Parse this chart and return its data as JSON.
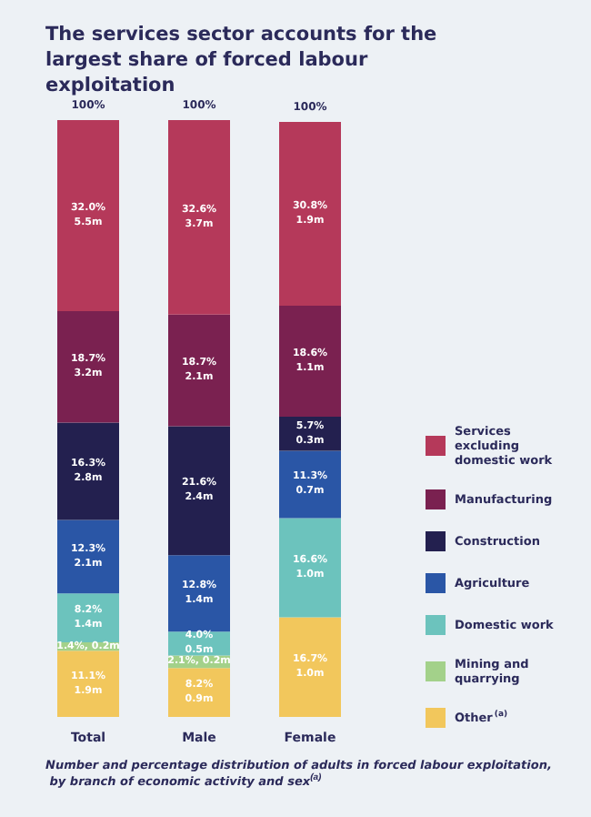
{
  "chart_data": {
    "type": "bar",
    "title": "The services sector accounts for the largest share of forced labour exploitation",
    "categories": [
      "Total",
      "Male",
      "Female"
    ],
    "stacked": true,
    "legend": "right",
    "series": [
      {
        "name": "Other$^{(a)}$",
        "color": "#f2c75c",
        "values": [
          11.1,
          8.2,
          16.7
        ],
        "value_labels": [
          "11.1%\n1.9m",
          "8.2%\n0.9m",
          "16.7%\n1.0m"
        ]
      },
      {
        "name": "Mining and quarrying",
        "color": "#a3d18a",
        "values": [
          1.4,
          2.1,
          null
        ],
        "value_labels": [
          "1.4%, 0.2m",
          "2.1%, 0.2m",
          null
        ]
      },
      {
        "name": "Domestic work",
        "color": "#6cc3bd",
        "values": [
          8.2,
          4.0,
          16.6
        ],
        "value_labels": [
          "8.2%\n1.4m",
          "4.0%\n0.5m",
          "16.6%\n1.0m"
        ]
      },
      {
        "name": "Agriculture",
        "color": "#2a56a6",
        "values": [
          12.3,
          12.8,
          11.3
        ],
        "value_labels": [
          "12.3%\n2.1m",
          "12.8%\n1.4m",
          "11.3%\n0.7m"
        ]
      },
      {
        "name": "Construction",
        "color": "#23204f",
        "values": [
          16.3,
          21.6,
          5.7
        ],
        "value_labels": [
          "16.3%\n2.8m",
          "21.6%\n2.4m",
          "5.7%\n0.3m"
        ]
      },
      {
        "name": "Manufacturing",
        "color": "#7a2150",
        "values": [
          18.7,
          18.7,
          18.6
        ],
        "value_labels": [
          "18.7%\n3.2m",
          "18.7%\n2.1m",
          "18.6%\n1.1m"
        ]
      },
      {
        "name": "Services excluding domestic work",
        "color": "#b5395a",
        "values": [
          32.0,
          32.6,
          30.8
        ],
        "value_labels": [
          "32.0%\n5.5m",
          "32.6%\n3.7m",
          "30.8%\n1.9m"
        ]
      }
    ],
    "totals": [
      "100%",
      "100%",
      "100%"
    ],
    "annotations": [
      "Number and percentage distribution of adults in forced labour exploitation, by branch of economic activity and sex$^{(a)}$"
    ]
  }
}
